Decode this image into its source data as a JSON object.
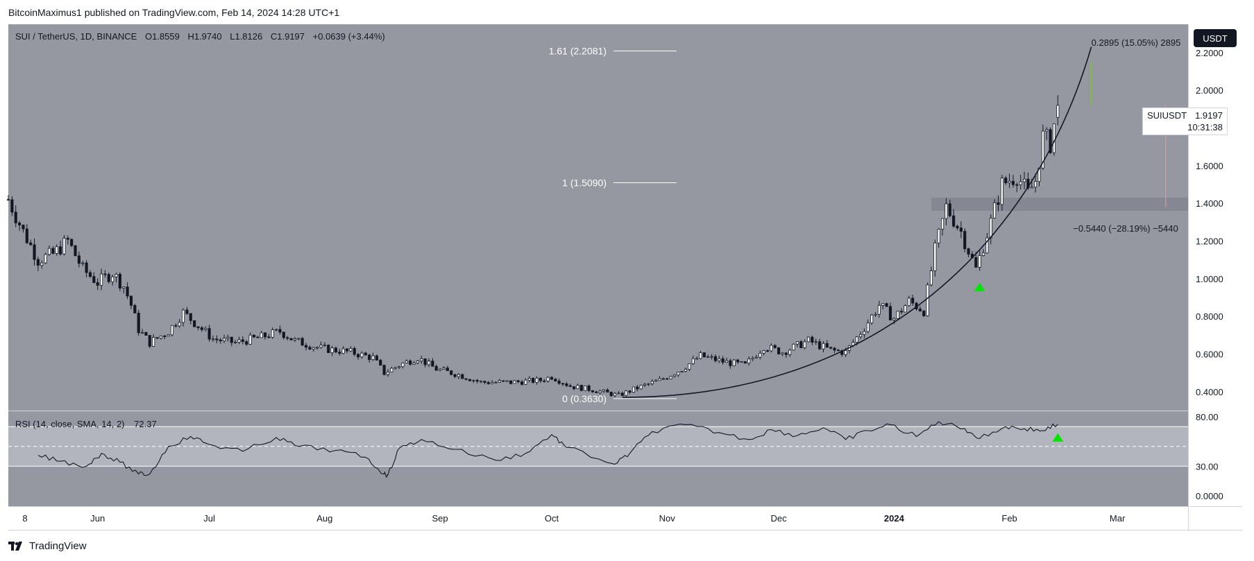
{
  "publisher": "BitcoinMaximus1 published on TradingView.com, Feb 14, 2024 14:28 UTC+1",
  "brand": "TradingView",
  "currency_badge": "USDT",
  "colors": {
    "pane_bg": "#9598a1",
    "rsi_band": "#b2b5be",
    "candle": "#131722",
    "up_fill": "#ffffff",
    "signal": "#00e600",
    "line": "#131722"
  },
  "legend": {
    "symbol": "SUI / TetherUS, 1D, BINANCE",
    "open": "O1.8559",
    "high": "H1.9740",
    "low": "L1.8126",
    "close": "C1.9197",
    "change": "+0.0639 (+3.44%)"
  },
  "last_price": {
    "symbol": "SUIUSDT",
    "price": "1.9197",
    "countdown": "10:31:38"
  },
  "rsi_legend": {
    "label": "RSI (14, close, SMA, 14, 2)",
    "value": "72.37"
  },
  "chart_data": [
    {
      "type": "candlestick",
      "title": "SUI / TetherUS, 1D, BINANCE",
      "y_axis": {
        "scale": "linear",
        "ylim": [
          0.3,
          2.35
        ],
        "ticks": [
          "2.2000",
          "2.0000",
          "1.8000",
          "1.6000",
          "1.4000",
          "1.2000",
          "1.0000",
          "0.8000",
          "0.6000",
          "0.4000"
        ],
        "position": "right"
      },
      "x_axis": {
        "ticks": [
          "8",
          "Jun",
          "Jul",
          "Aug",
          "Sep",
          "Oct",
          "Nov",
          "Dec",
          "2024",
          "Feb",
          "Mar"
        ]
      },
      "x_range": [
        "2023-05-08",
        "2024-03-20"
      ],
      "close_path": [
        [
          "2023-05-08",
          1.42
        ],
        [
          "2023-05-12",
          1.25
        ],
        [
          "2023-05-16",
          1.1
        ],
        [
          "2023-05-20",
          1.13
        ],
        [
          "2023-05-24",
          1.2
        ],
        [
          "2023-05-28",
          1.05
        ],
        [
          "2023-06-01",
          0.98
        ],
        [
          "2023-06-05",
          1.03
        ],
        [
          "2023-06-08",
          0.96
        ],
        [
          "2023-06-10",
          0.86
        ],
        [
          "2023-06-12",
          0.73
        ],
        [
          "2023-06-15",
          0.66
        ],
        [
          "2023-06-20",
          0.72
        ],
        [
          "2023-06-24",
          0.82
        ],
        [
          "2023-06-28",
          0.75
        ],
        [
          "2023-07-02",
          0.68
        ],
        [
          "2023-07-08",
          0.66
        ],
        [
          "2023-07-15",
          0.69
        ],
        [
          "2023-07-20",
          0.72
        ],
        [
          "2023-07-24",
          0.67
        ],
        [
          "2023-07-31",
          0.63
        ],
        [
          "2023-08-08",
          0.61
        ],
        [
          "2023-08-14",
          0.58
        ],
        [
          "2023-08-17",
          0.5
        ],
        [
          "2023-08-22",
          0.55
        ],
        [
          "2023-08-26",
          0.58
        ],
        [
          "2023-08-31",
          0.52
        ],
        [
          "2023-09-06",
          0.49
        ],
        [
          "2023-09-12",
          0.45
        ],
        [
          "2023-09-20",
          0.45
        ],
        [
          "2023-09-28",
          0.46
        ],
        [
          "2023-10-01",
          0.48
        ],
        [
          "2023-10-06",
          0.43
        ],
        [
          "2023-10-12",
          0.41
        ],
        [
          "2023-10-19",
          0.38
        ],
        [
          "2023-10-24",
          0.42
        ],
        [
          "2023-10-30",
          0.46
        ],
        [
          "2023-11-05",
          0.52
        ],
        [
          "2023-11-10",
          0.59
        ],
        [
          "2023-11-16",
          0.56
        ],
        [
          "2023-11-22",
          0.54
        ],
        [
          "2023-11-27",
          0.64
        ],
        [
          "2023-12-02",
          0.61
        ],
        [
          "2023-12-09",
          0.67
        ],
        [
          "2023-12-15",
          0.62
        ],
        [
          "2023-12-19",
          0.61
        ],
        [
          "2023-12-24",
          0.74
        ],
        [
          "2023-12-28",
          0.86
        ],
        [
          "2024-01-01",
          0.79
        ],
        [
          "2024-01-05",
          0.88
        ],
        [
          "2024-01-09",
          0.83
        ],
        [
          "2024-01-12",
          1.15
        ],
        [
          "2024-01-15",
          1.38
        ],
        [
          "2024-01-19",
          1.25
        ],
        [
          "2024-01-23",
          1.05
        ],
        [
          "2024-01-27",
          1.3
        ],
        [
          "2024-01-30",
          1.5
        ],
        [
          "2024-02-03",
          1.55
        ],
        [
          "2024-02-06",
          1.45
        ],
        [
          "2024-02-08",
          1.52
        ],
        [
          "2024-02-10",
          1.75
        ],
        [
          "2024-02-12",
          1.72
        ],
        [
          "2024-02-14",
          1.92
        ]
      ],
      "last_candle": {
        "open": 1.8559,
        "high": 1.974,
        "low": 1.8126,
        "close": 1.9197
      },
      "fib_levels": [
        {
          "label": "1.61 (2.2081)",
          "value": 2.2081
        },
        {
          "label": "1 (1.5090)",
          "value": 1.509
        },
        {
          "label": "0 (0.3630)",
          "value": 0.363
        }
      ],
      "measure_up": {
        "label": "0.2895 (15.05%) 2895"
      },
      "measure_down": {
        "label": "−0.5440 (−28.19%) −5440"
      },
      "support_zone": [
        1.36,
        1.43
      ],
      "parabolic_curve": {
        "from": [
          "2023-10-20",
          0.37
        ],
        "to": [
          "2024-02-23",
          2.23
        ]
      },
      "signals": [
        {
          "x": "2024-01-24",
          "y": 0.955,
          "shape": "triangle-up"
        }
      ]
    },
    {
      "type": "line",
      "title": "RSI (14, close, SMA, 14, 2)",
      "y_axis": {
        "ticks": [
          "80.00",
          "30.00",
          "0.0000"
        ],
        "band": [
          30,
          70
        ],
        "midline": 50
      },
      "values": [
        [
          "2023-05-16",
          41
        ],
        [
          "2023-05-22",
          35
        ],
        [
          "2023-05-29",
          30
        ],
        [
          "2023-06-02",
          43
        ],
        [
          "2023-06-07",
          34
        ],
        [
          "2023-06-12",
          22
        ],
        [
          "2023-06-15",
          22
        ],
        [
          "2023-06-20",
          50
        ],
        [
          "2023-06-26",
          60
        ],
        [
          "2023-07-01",
          52
        ],
        [
          "2023-07-10",
          45
        ],
        [
          "2023-07-19",
          59
        ],
        [
          "2023-07-25",
          50
        ],
        [
          "2023-08-04",
          46
        ],
        [
          "2023-08-12",
          39
        ],
        [
          "2023-08-17",
          22
        ],
        [
          "2023-08-18",
          21
        ],
        [
          "2023-08-21",
          48
        ],
        [
          "2023-08-27",
          57
        ],
        [
          "2023-09-05",
          47
        ],
        [
          "2023-09-16",
          36
        ],
        [
          "2023-09-24",
          43
        ],
        [
          "2023-10-01",
          62
        ],
        [
          "2023-10-05",
          49
        ],
        [
          "2023-10-18",
          32
        ],
        [
          "2023-10-22",
          43
        ],
        [
          "2023-10-28",
          65
        ],
        [
          "2023-11-06",
          72
        ],
        [
          "2023-11-15",
          64
        ],
        [
          "2023-11-23",
          57
        ],
        [
          "2023-11-29",
          67
        ],
        [
          "2023-12-06",
          61
        ],
        [
          "2023-12-13",
          69
        ],
        [
          "2023-12-19",
          57
        ],
        [
          "2023-12-25",
          66
        ],
        [
          "2023-12-31",
          72
        ],
        [
          "2024-01-07",
          60
        ],
        [
          "2024-01-13",
          75
        ],
        [
          "2024-01-20",
          68
        ],
        [
          "2024-01-24",
          58
        ],
        [
          "2024-01-31",
          70
        ],
        [
          "2024-02-05",
          68
        ],
        [
          "2024-02-10",
          66
        ],
        [
          "2024-02-14",
          72.37
        ]
      ],
      "signals": [
        {
          "x": "2024-02-14",
          "y": 59,
          "shape": "triangle-up"
        }
      ]
    }
  ]
}
